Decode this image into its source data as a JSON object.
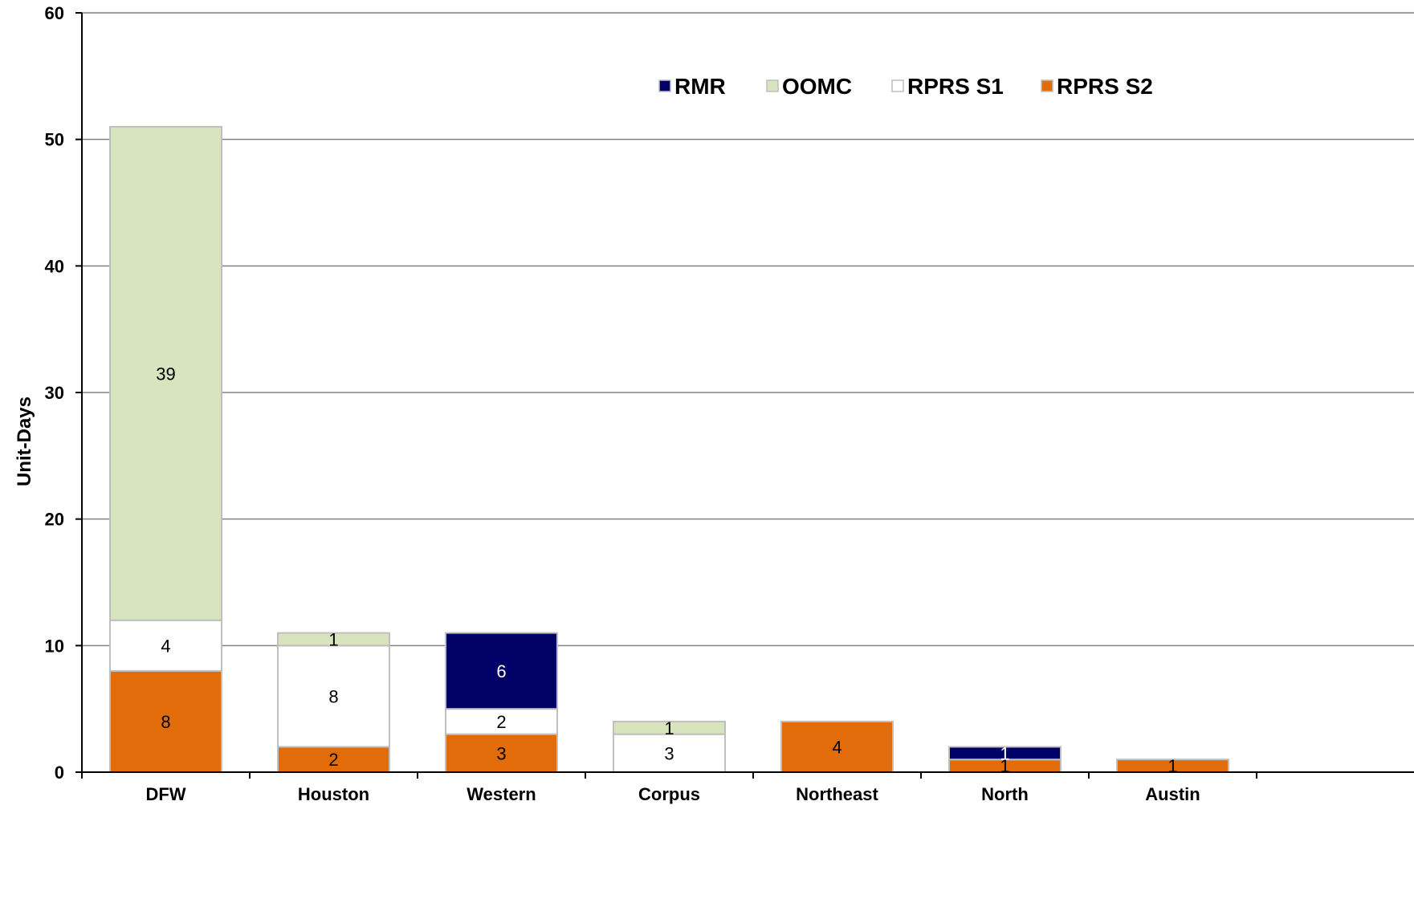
{
  "chart_data": {
    "type": "bar",
    "stacked": true,
    "categories": [
      "DFW",
      "Houston",
      "Western",
      "Corpus",
      "Northeast",
      "North",
      "Austin"
    ],
    "series": [
      {
        "name": "RPRS S2",
        "color": "#E36C0A",
        "values": [
          8,
          2,
          3,
          0,
          4,
          1,
          1
        ]
      },
      {
        "name": "RPRS S1",
        "color": "#FFFFFF",
        "values": [
          4,
          8,
          2,
          3,
          0,
          0,
          0
        ]
      },
      {
        "name": "OOMC",
        "color": "#D7E4BD",
        "values": [
          39,
          1,
          0,
          1,
          0,
          0,
          0
        ]
      },
      {
        "name": "RMR",
        "color": "#000066",
        "values": [
          0,
          0,
          6,
          0,
          0,
          1,
          0
        ]
      }
    ],
    "legend_order": [
      "RMR",
      "OOMC",
      "RPRS S1",
      "RPRS S2"
    ],
    "legend_position": "top-right",
    "ylabel": "Unit-Days",
    "xlabel": "",
    "title": "",
    "ylim": [
      0,
      60
    ],
    "yticks": [
      0,
      10,
      20,
      30,
      40,
      50,
      60
    ],
    "grid": true
  }
}
